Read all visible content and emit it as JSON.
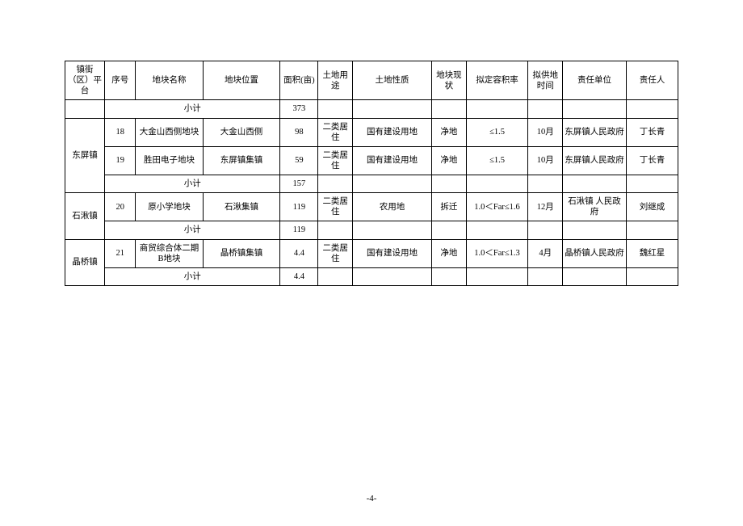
{
  "headers": {
    "c1": "镇街（区）平台",
    "c2": "序号",
    "c3": "地块名称",
    "c4": "地块位置",
    "c5": "面积(亩)",
    "c6": "土地用途",
    "c7": "土地性质",
    "c8": "地块现状",
    "c9": "拟定容积率",
    "c10": "拟供地时间",
    "c11": "责任单位",
    "c12": "责任人"
  },
  "subtotal_label": "小计",
  "top_subtotal_area": "373",
  "groups": [
    {
      "town": "东屏镇",
      "rows": [
        {
          "seq": "18",
          "name": "大金山西侧地块",
          "location": "大金山西侧",
          "area": "98",
          "use": "二类居住",
          "nature": "国有建设用地",
          "status": "净地",
          "far": "≤1.5",
          "time": "10月",
          "unit": "东屏镇人民政府",
          "person": "丁长青"
        },
        {
          "seq": "19",
          "name": "胜田电子地块",
          "location": "东屏镇集镇",
          "area": "59",
          "use": "二类居住",
          "nature": "国有建设用地",
          "status": "净地",
          "far": "≤1.5",
          "time": "10月",
          "unit": "东屏镇人民政府",
          "person": "丁长青"
        }
      ],
      "subtotal_area": "157"
    },
    {
      "town": "石湫镇",
      "rows": [
        {
          "seq": "20",
          "name": "原小学地块",
          "location": "石湫集镇",
          "area": "119",
          "use": "二类居住",
          "nature": "农用地",
          "status": "拆迁",
          "far": "1.0＜Far≤1.6",
          "time": "12月",
          "unit": "石湫镇 人民政府",
          "person": "刘继成"
        }
      ],
      "subtotal_area": "119"
    },
    {
      "town": "晶桥镇",
      "rows": [
        {
          "seq": "21",
          "name": "商贸综合体二期B地块",
          "location": "晶桥镇集镇",
          "area": "4.4",
          "use": "二类居住",
          "nature": "国有建设用地",
          "status": "净地",
          "far": "1.0＜Far≤1.3",
          "time": "4月",
          "unit": "晶桥镇人民政府",
          "person": "魏红星"
        }
      ],
      "subtotal_area": "4.4"
    }
  ],
  "page_number": "-4-"
}
